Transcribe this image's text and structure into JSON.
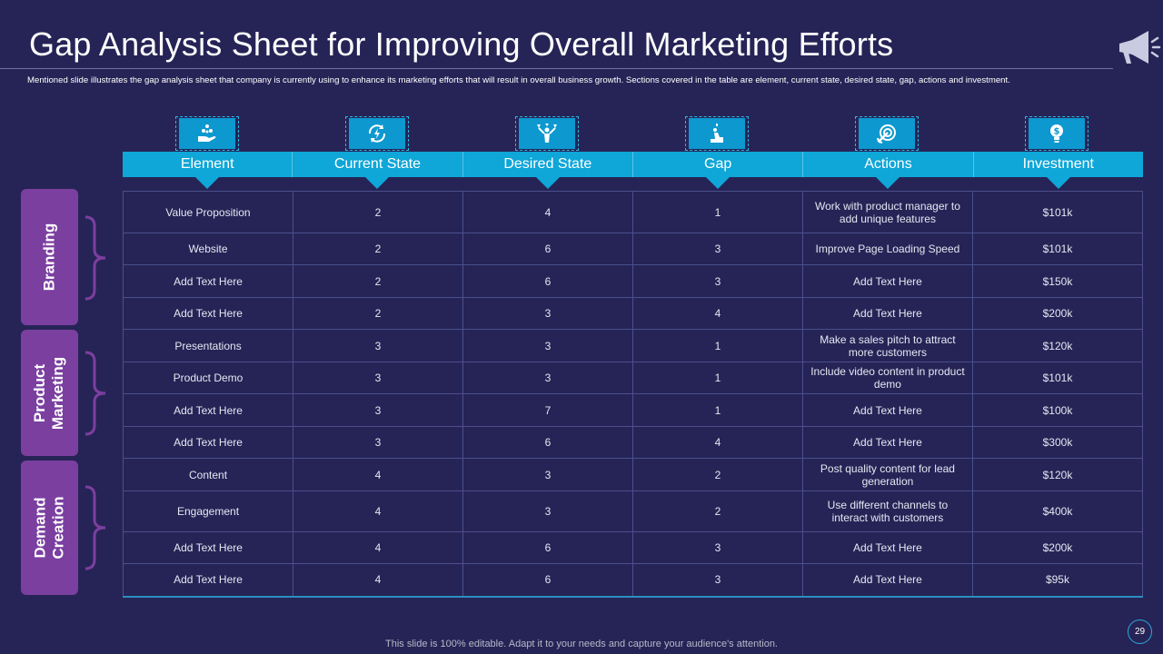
{
  "slide": {
    "title": "Gap Analysis Sheet for Improving Overall Marketing Efforts",
    "subtitle": "Mentioned slide illustrates the gap analysis sheet that company is currently using to enhance its marketing efforts that will result in overall business growth. Sections covered in the table are element, current state, desired state, gap, actions and investment.",
    "footer": "This slide is 100% editable. Adapt it to your needs and capture your audience's attention.",
    "page_number": "29"
  },
  "colors": {
    "background": "#262456",
    "header": "#0fa6d8",
    "group": "#7b3fa0"
  },
  "icons": [
    "hand-coins-icon",
    "refresh-bolt-icon",
    "target-person-icon",
    "climbing-person-icon",
    "dart-target-icon",
    "dollar-bulb-icon"
  ],
  "columns": [
    "Element",
    "Current State",
    "Desired State",
    "Gap",
    "Actions",
    "Investment"
  ],
  "groups": [
    {
      "label": "Branding"
    },
    {
      "label": "Product\nMarketing"
    },
    {
      "label": "Demand\nCreation"
    }
  ],
  "rows": [
    [
      "Value Proposition",
      "2",
      "4",
      "1",
      "Work with product manager to add unique features",
      "$101k"
    ],
    [
      "Website",
      "2",
      "6",
      "3",
      "Improve Page Loading Speed",
      "$101k"
    ],
    [
      "Add Text Here",
      "2",
      "6",
      "3",
      "Add Text Here",
      "$150k"
    ],
    [
      "Add Text Here",
      "2",
      "3",
      "4",
      "Add Text Here",
      "$200k"
    ],
    [
      "Presentations",
      "3",
      "3",
      "1",
      "Make a sales pitch to attract more customers",
      "$120k"
    ],
    [
      "Product Demo",
      "3",
      "3",
      "1",
      "Include video content in product demo",
      "$101k"
    ],
    [
      "Add Text Here",
      "3",
      "7",
      "1",
      "Add Text Here",
      "$100k"
    ],
    [
      "Add Text Here",
      "3",
      "6",
      "4",
      "Add Text Here",
      "$300k"
    ],
    [
      "Content",
      "4",
      "3",
      "2",
      "Post quality content for lead generation",
      "$120k"
    ],
    [
      "Engagement",
      "4",
      "3",
      "2",
      "Use different channels to interact with customers",
      "$400k"
    ],
    [
      "Add Text Here",
      "4",
      "6",
      "3",
      "Add Text Here",
      "$200k"
    ],
    [
      "Add Text Here",
      "4",
      "6",
      "3",
      "Add Text Here",
      "$95k"
    ]
  ]
}
